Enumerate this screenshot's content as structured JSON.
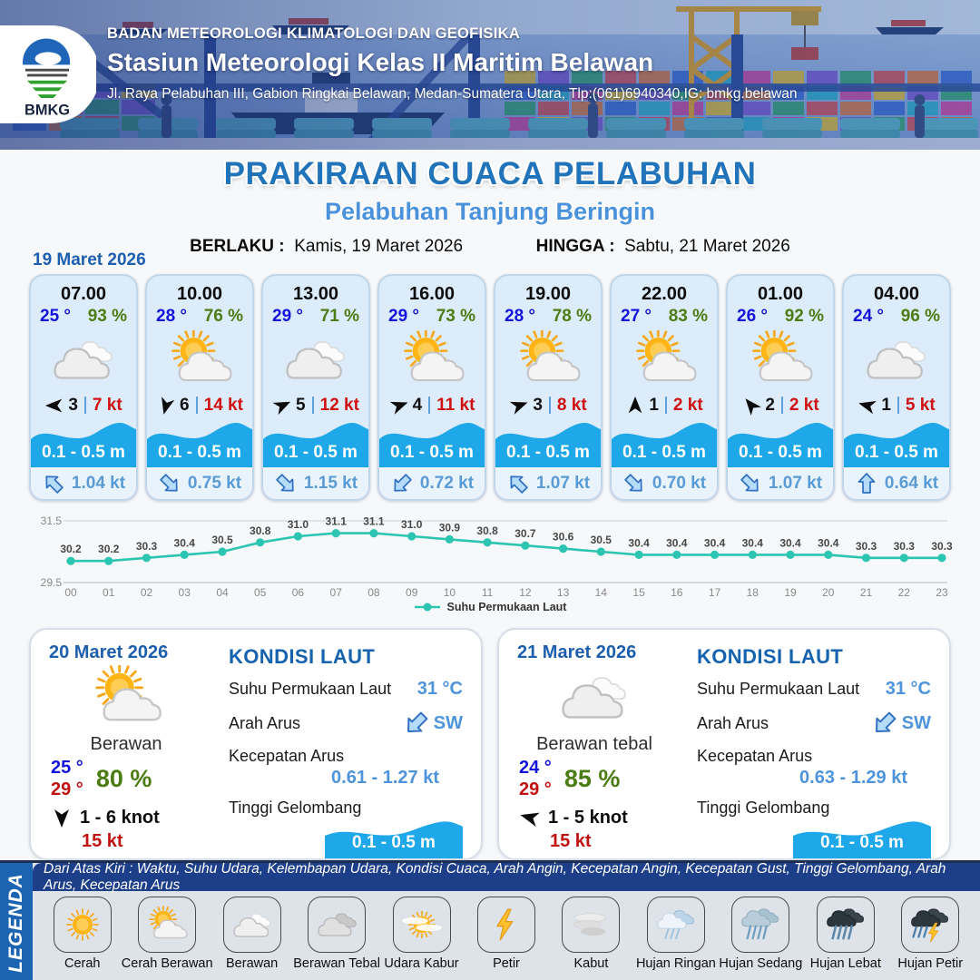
{
  "header": {
    "org": "BADAN METEOROLOGI KLIMATOLOGI DAN GEOFISIKA",
    "station": "Stasiun Meteorologi Kelas II Maritim Belawan",
    "address": "Jl. Raya Pelabuhan III, Gabion Ringkai Belawan, Medan-Sumatera Utara, Tlp:(061)6940340,IG: bmkg.belawan",
    "logo_text": "BMKG"
  },
  "title": {
    "main": "PRAKIRAAN CUACA PELABUHAN",
    "subtitle": "Pelabuhan Tanjung Beringin",
    "berlaku_label": "BERLAKU :",
    "berlaku_value": "Kamis, 19 Maret 2026",
    "hingga_label": "HINGGA :",
    "hingga_value": "Sabtu, 21 Maret 2026"
  },
  "forecast_date": "19 Maret 2026",
  "cards": [
    {
      "time": "07.00",
      "temp": "25 °",
      "humidity": "93 %",
      "icon": "berawan",
      "wind_speed": "3",
      "gust": "7 kt",
      "wind_dir_deg": 180,
      "wave": "0.1 - 0.5 m",
      "current_speed": "1.04 kt",
      "current_dir_deg": -135
    },
    {
      "time": "10.00",
      "temp": "28 °",
      "humidity": "76 %",
      "icon": "cerah-berawan",
      "wind_speed": "6",
      "gust": "14 kt",
      "wind_dir_deg": 105,
      "wave": "0.1 - 0.5 m",
      "current_speed": "0.75 kt",
      "current_dir_deg": 45
    },
    {
      "time": "13.00",
      "temp": "29 °",
      "humidity": "71 %",
      "icon": "berawan",
      "wind_speed": "5",
      "gust": "12 kt",
      "wind_dir_deg": -25,
      "wave": "0.1 - 0.5 m",
      "current_speed": "1.15 kt",
      "current_dir_deg": 45
    },
    {
      "time": "16.00",
      "temp": "29 °",
      "humidity": "73 %",
      "icon": "cerah-berawan",
      "wind_speed": "4",
      "gust": "11 kt",
      "wind_dir_deg": -20,
      "wave": "0.1 - 0.5 m",
      "current_speed": "0.72 kt",
      "current_dir_deg": 135
    },
    {
      "time": "19.00",
      "temp": "28 °",
      "humidity": "78 %",
      "icon": "cerah-berawan",
      "wind_speed": "3",
      "gust": "8 kt",
      "wind_dir_deg": -20,
      "wave": "0.1 - 0.5 m",
      "current_speed": "1.07 kt",
      "current_dir_deg": -135
    },
    {
      "time": "22.00",
      "temp": "27 °",
      "humidity": "83 %",
      "icon": "cerah-berawan",
      "wind_speed": "1",
      "gust": "2 kt",
      "wind_dir_deg": -90,
      "wave": "0.1 - 0.5 m",
      "current_speed": "0.70 kt",
      "current_dir_deg": 45
    },
    {
      "time": "01.00",
      "temp": "26 °",
      "humidity": "92 %",
      "icon": "cerah-berawan",
      "wind_speed": "2",
      "gust": "2 kt",
      "wind_dir_deg": -130,
      "wave": "0.1 - 0.5 m",
      "current_speed": "1.07 kt",
      "current_dir_deg": 45
    },
    {
      "time": "04.00",
      "temp": "24 °",
      "humidity": "96 %",
      "icon": "berawan",
      "wind_speed": "1",
      "gust": "5 kt",
      "wind_dir_deg": -165,
      "wave": "0.1 - 0.5 m",
      "current_speed": "0.64 kt",
      "current_dir_deg": -90
    }
  ],
  "chart_data": {
    "type": "line",
    "title": "Suhu Permukaan Laut",
    "x": [
      "00",
      "01",
      "02",
      "03",
      "04",
      "05",
      "06",
      "07",
      "08",
      "09",
      "10",
      "11",
      "12",
      "13",
      "14",
      "15",
      "16",
      "17",
      "18",
      "19",
      "20",
      "21",
      "22",
      "23"
    ],
    "values": [
      30.2,
      30.2,
      30.3,
      30.4,
      30.5,
      30.8,
      31.0,
      31.1,
      31.1,
      31.0,
      30.9,
      30.8,
      30.7,
      30.6,
      30.5,
      30.4,
      30.4,
      30.4,
      30.4,
      30.4,
      30.4,
      30.3,
      30.3,
      30.3
    ],
    "ylim": [
      29.5,
      31.5
    ],
    "yticks": [
      "31.5",
      "29.5"
    ],
    "grid": true,
    "legend": "Suhu Permukaan Laut",
    "legend_position": "bottom-center",
    "line_color": "#2cc5b2"
  },
  "panels": [
    {
      "date": "20 Maret 2026",
      "icon": "cerah-berawan",
      "condition": "Berawan",
      "temp_min": "25 °",
      "temp_max": "29 °",
      "humidity": "80 %",
      "wind_range": "1  - 6 knot",
      "wind_dir_deg": 90,
      "gust": "15 kt",
      "sea": {
        "title": "KONDISI LAUT",
        "sst_label": "Suhu Permukaan Laut",
        "sst": "31 °C",
        "arah_label": "Arah Arus",
        "arah": "SW",
        "arah_deg": 135,
        "kecepatan_label": "Kecepatan Arus",
        "kecepatan": "0.61 - 1.27 kt",
        "gelombang_label": "Tinggi Gelombang",
        "gelombang": "0.1 - 0.5 m"
      }
    },
    {
      "date": "21 Maret 2026",
      "icon": "berawan",
      "condition": "Berawan tebal",
      "temp_min": "24 °",
      "temp_max": "29 °",
      "humidity": "85 %",
      "wind_range": "1  - 5 knot",
      "wind_dir_deg": 195,
      "gust": "15 kt",
      "sea": {
        "title": "KONDISI LAUT",
        "sst_label": "Suhu Permukaan Laut",
        "sst": "31 °C",
        "arah_label": "Arah Arus",
        "arah": "SW",
        "arah_deg": 135,
        "kecepatan_label": "Kecepatan Arus",
        "kecepatan": "0.63  - 1.29 kt",
        "gelombang_label": "Tinggi Gelombang",
        "gelombang": "0.1 - 0.5 m"
      }
    }
  ],
  "legend_section": {
    "vertical_label": "LEGENDA",
    "description": "Dari Atas Kiri : Waktu, Suhu Udara, Kelembapan Udara, Kondisi Cuaca, Arah Angin, Kecepatan Angin, Kecepatan Gust, Tinggi Gelombang, Arah Arus, Kecepatan Arus",
    "items": [
      {
        "label": "Cerah",
        "icon": "cerah"
      },
      {
        "label": "Cerah Berawan",
        "icon": "cerah-berawan"
      },
      {
        "label": "Berawan",
        "icon": "berawan"
      },
      {
        "label": "Berawan Tebal",
        "icon": "berawan-tebal"
      },
      {
        "label": "Udara Kabur",
        "icon": "udara-kabur"
      },
      {
        "label": "Petir",
        "icon": "petir"
      },
      {
        "label": "Kabut",
        "icon": "kabut"
      },
      {
        "label": "Hujan Ringan",
        "icon": "hujan-ringan"
      },
      {
        "label": "Hujan Sedang",
        "icon": "hujan-sedang"
      },
      {
        "label": "Hujan Lebat",
        "icon": "hujan-lebat"
      },
      {
        "label": "Hujan Petir",
        "icon": "hujan-petir"
      }
    ]
  },
  "colors": {
    "title_blue": "#2173ba",
    "subtitle_blue": "#4b92dc",
    "accent_blue": "#1d5fae",
    "temp_blue": "#1414dd",
    "humidity_green": "#4c7c14",
    "gust_red": "#cf1211",
    "wave_blue": "#1ea7e9",
    "current_blue": "#5b9bd5",
    "chart_teal": "#2cc5b2",
    "legend_bar_navy": "#1d3f8a",
    "legend_strip_blue": "#1c64b2"
  }
}
